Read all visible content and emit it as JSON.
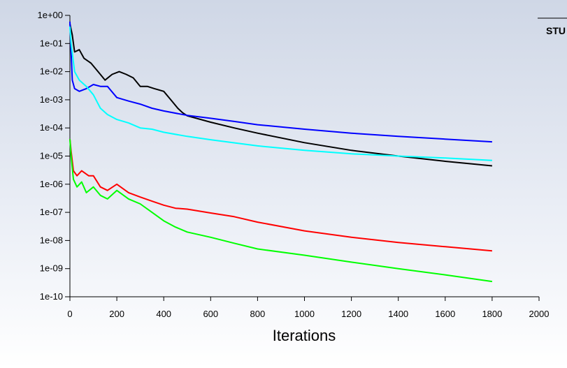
{
  "chart_data": {
    "type": "line",
    "xlabel": "Iterations",
    "ylabel": "",
    "xlim": [
      0,
      2000
    ],
    "ylim": [
      1e-10,
      1
    ],
    "yscale": "log",
    "grid": false,
    "xticks": [
      "0",
      "200",
      "400",
      "600",
      "800",
      "1000",
      "1200",
      "1400",
      "1600",
      "1800",
      "2000"
    ],
    "yticks": [
      "1e+00",
      "1e-01",
      "1e-02",
      "1e-03",
      "1e-04",
      "1e-05",
      "1e-06",
      "1e-07",
      "1e-08",
      "1e-09",
      "1e-10"
    ],
    "legend_fragment": "STU",
    "series": [
      {
        "color": "#000000",
        "points": [
          [
            0,
            0.5
          ],
          [
            10,
            0.2
          ],
          [
            20,
            0.05
          ],
          [
            40,
            0.06
          ],
          [
            60,
            0.03
          ],
          [
            90,
            0.02
          ],
          [
            120,
            0.01
          ],
          [
            150,
            0.005
          ],
          [
            180,
            0.008
          ],
          [
            210,
            0.01
          ],
          [
            240,
            0.008
          ],
          [
            270,
            0.006
          ],
          [
            300,
            0.003
          ],
          [
            330,
            0.003
          ],
          [
            360,
            0.0025
          ],
          [
            400,
            0.002
          ],
          [
            430,
            0.001
          ],
          [
            460,
            0.0005
          ],
          [
            480,
            0.00035
          ],
          [
            500,
            0.00027
          ],
          [
            600,
            0.00016
          ],
          [
            700,
            0.0001
          ],
          [
            800,
            6.5e-05
          ],
          [
            1000,
            3e-05
          ],
          [
            1200,
            1.6e-05
          ],
          [
            1400,
            1e-05
          ],
          [
            1600,
            6.5e-06
          ],
          [
            1800,
            4.5e-06
          ]
        ]
      },
      {
        "color": "#0000ff",
        "points": [
          [
            0,
            0.6
          ],
          [
            5,
            0.05
          ],
          [
            10,
            0.005
          ],
          [
            20,
            0.0025
          ],
          [
            40,
            0.002
          ],
          [
            70,
            0.0025
          ],
          [
            100,
            0.0035
          ],
          [
            130,
            0.003
          ],
          [
            160,
            0.003
          ],
          [
            200,
            0.0012
          ],
          [
            250,
            0.0009
          ],
          [
            300,
            0.0007
          ],
          [
            350,
            0.0005
          ],
          [
            400,
            0.0004
          ],
          [
            500,
            0.00028
          ],
          [
            600,
            0.00022
          ],
          [
            700,
            0.00017
          ],
          [
            800,
            0.00013
          ],
          [
            1000,
            9e-05
          ],
          [
            1200,
            6.5e-05
          ],
          [
            1400,
            5e-05
          ],
          [
            1600,
            4e-05
          ],
          [
            1800,
            3.2e-05
          ]
        ]
      },
      {
        "color": "#00ffff",
        "points": [
          [
            0,
            0.4
          ],
          [
            5,
            0.1
          ],
          [
            20,
            0.01
          ],
          [
            40,
            0.005
          ],
          [
            70,
            0.003
          ],
          [
            100,
            0.0015
          ],
          [
            130,
            0.0005
          ],
          [
            160,
            0.0003
          ],
          [
            200,
            0.0002
          ],
          [
            250,
            0.00015
          ],
          [
            300,
            0.0001
          ],
          [
            350,
            9e-05
          ],
          [
            400,
            7e-05
          ],
          [
            500,
            5e-05
          ],
          [
            600,
            3.8e-05
          ],
          [
            800,
            2.3e-05
          ],
          [
            1000,
            1.6e-05
          ],
          [
            1200,
            1.2e-05
          ],
          [
            1400,
            1e-05
          ],
          [
            1600,
            8.5e-06
          ],
          [
            1800,
            7e-06
          ]
        ]
      },
      {
        "color": "#ff0000",
        "points": [
          [
            0,
            4e-05
          ],
          [
            5,
            1.5e-05
          ],
          [
            15,
            3e-06
          ],
          [
            30,
            2e-06
          ],
          [
            50,
            3e-06
          ],
          [
            80,
            2e-06
          ],
          [
            100,
            2e-06
          ],
          [
            130,
            8e-07
          ],
          [
            160,
            6e-07
          ],
          [
            200,
            1e-06
          ],
          [
            250,
            5e-07
          ],
          [
            300,
            3.5e-07
          ],
          [
            350,
            2.5e-07
          ],
          [
            400,
            1.8e-07
          ],
          [
            450,
            1.4e-07
          ],
          [
            500,
            1.3e-07
          ],
          [
            600,
            9.5e-08
          ],
          [
            700,
            7e-08
          ],
          [
            800,
            4.5e-08
          ],
          [
            1000,
            2.2e-08
          ],
          [
            1200,
            1.3e-08
          ],
          [
            1400,
            8.5e-09
          ],
          [
            1600,
            6e-09
          ],
          [
            1800,
            4.3e-09
          ]
        ]
      },
      {
        "color": "#00ff00",
        "points": [
          [
            0,
            4e-05
          ],
          [
            5,
            1e-05
          ],
          [
            15,
            1.5e-06
          ],
          [
            30,
            8e-07
          ],
          [
            50,
            1.2e-06
          ],
          [
            70,
            5e-07
          ],
          [
            100,
            8e-07
          ],
          [
            130,
            4e-07
          ],
          [
            160,
            3e-07
          ],
          [
            200,
            6e-07
          ],
          [
            250,
            3e-07
          ],
          [
            300,
            2e-07
          ],
          [
            350,
            1e-07
          ],
          [
            400,
            5e-08
          ],
          [
            450,
            3e-08
          ],
          [
            500,
            2e-08
          ],
          [
            600,
            1.3e-08
          ],
          [
            700,
            8e-09
          ],
          [
            800,
            5e-09
          ],
          [
            1000,
            3e-09
          ],
          [
            1200,
            1.7e-09
          ],
          [
            1400,
            1e-09
          ],
          [
            1600,
            6e-10
          ],
          [
            1800,
            3.5e-10
          ]
        ]
      }
    ]
  },
  "colors": {
    "axis": "#000000"
  }
}
